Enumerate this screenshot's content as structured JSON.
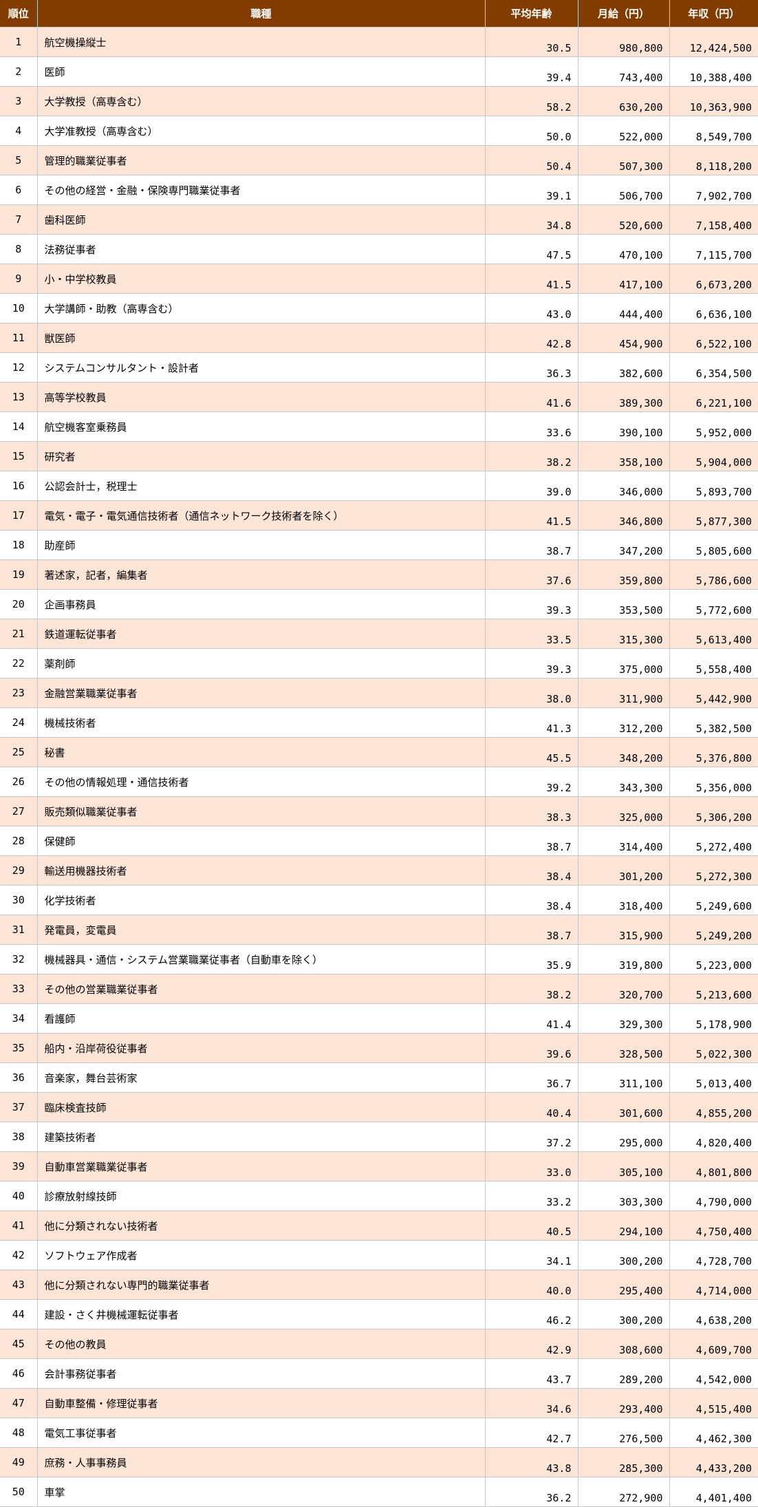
{
  "colors": {
    "header_bg": "#833C00",
    "header_text": "#FFFFFF",
    "stripe_bg": "#FCE4D6",
    "row_bg": "#FFFFFF",
    "grid": "#C8C8C8",
    "text": "#000000"
  },
  "chart_data": {
    "type": "table",
    "columns": [
      "順位",
      "職種",
      "平均年齢",
      "月給（円）",
      "年収（円）"
    ],
    "rows": [
      [
        "1",
        "航空機操縦士",
        "30.5",
        "980,800",
        "12,424,500"
      ],
      [
        "2",
        "医師",
        "39.4",
        "743,400",
        "10,388,400"
      ],
      [
        "3",
        "大学教授（高専含む）",
        "58.2",
        "630,200",
        "10,363,900"
      ],
      [
        "4",
        "大学准教授（高専含む）",
        "50.0",
        "522,000",
        "8,549,700"
      ],
      [
        "5",
        "管理的職業従事者",
        "50.4",
        "507,300",
        "8,118,200"
      ],
      [
        "6",
        "その他の経営・金融・保険専門職業従事者",
        "39.1",
        "506,700",
        "7,902,700"
      ],
      [
        "7",
        "歯科医師",
        "34.8",
        "520,600",
        "7,158,400"
      ],
      [
        "8",
        "法務従事者",
        "47.5",
        "470,100",
        "7,115,700"
      ],
      [
        "9",
        "小・中学校教員",
        "41.5",
        "417,100",
        "6,673,200"
      ],
      [
        "10",
        "大学講師・助教（高専含む）",
        "43.0",
        "444,400",
        "6,636,100"
      ],
      [
        "11",
        "獣医師",
        "42.8",
        "454,900",
        "6,522,100"
      ],
      [
        "12",
        "システムコンサルタント・設計者",
        "36.3",
        "382,600",
        "6,354,500"
      ],
      [
        "13",
        "高等学校教員",
        "41.6",
        "389,300",
        "6,221,100"
      ],
      [
        "14",
        "航空機客室乗務員",
        "33.6",
        "390,100",
        "5,952,000"
      ],
      [
        "15",
        "研究者",
        "38.2",
        "358,100",
        "5,904,000"
      ],
      [
        "16",
        "公認会計士，税理士",
        "39.0",
        "346,000",
        "5,893,700"
      ],
      [
        "17",
        "電気・電子・電気通信技術者（通信ネットワーク技術者を除く）",
        "41.5",
        "346,800",
        "5,877,300"
      ],
      [
        "18",
        "助産師",
        "38.7",
        "347,200",
        "5,805,600"
      ],
      [
        "19",
        "著述家，記者，編集者",
        "37.6",
        "359,800",
        "5,786,600"
      ],
      [
        "20",
        "企画事務員",
        "39.3",
        "353,500",
        "5,772,600"
      ],
      [
        "21",
        "鉄道運転従事者",
        "33.5",
        "315,300",
        "5,613,400"
      ],
      [
        "22",
        "薬剤師",
        "39.3",
        "375,000",
        "5,558,400"
      ],
      [
        "23",
        "金融営業職業従事者",
        "38.0",
        "311,900",
        "5,442,900"
      ],
      [
        "24",
        "機械技術者",
        "41.3",
        "312,200",
        "5,382,500"
      ],
      [
        "25",
        "秘書",
        "45.5",
        "348,200",
        "5,376,800"
      ],
      [
        "26",
        "その他の情報処理・通信技術者",
        "39.2",
        "343,300",
        "5,356,000"
      ],
      [
        "27",
        "販売類似職業従事者",
        "38.3",
        "325,000",
        "5,306,200"
      ],
      [
        "28",
        "保健師",
        "38.7",
        "314,400",
        "5,272,400"
      ],
      [
        "29",
        "輸送用機器技術者",
        "38.4",
        "301,200",
        "5,272,300"
      ],
      [
        "30",
        "化学技術者",
        "38.4",
        "318,400",
        "5,249,600"
      ],
      [
        "31",
        "発電員，変電員",
        "38.7",
        "315,900",
        "5,249,200"
      ],
      [
        "32",
        "機械器具・通信・システム営業職業従事者（自動車を除く）",
        "35.9",
        "319,800",
        "5,223,000"
      ],
      [
        "33",
        "その他の営業職業従事者",
        "38.2",
        "320,700",
        "5,213,600"
      ],
      [
        "34",
        "看護師",
        "41.4",
        "329,300",
        "5,178,900"
      ],
      [
        "35",
        "船内・沿岸荷役従事者",
        "39.6",
        "328,500",
        "5,022,300"
      ],
      [
        "36",
        "音楽家，舞台芸術家",
        "36.7",
        "311,100",
        "5,013,400"
      ],
      [
        "37",
        "臨床検査技師",
        "40.4",
        "301,600",
        "4,855,200"
      ],
      [
        "38",
        "建築技術者",
        "37.2",
        "295,000",
        "4,820,400"
      ],
      [
        "39",
        "自動車営業職業従事者",
        "33.0",
        "305,100",
        "4,801,800"
      ],
      [
        "40",
        "診療放射線技師",
        "33.2",
        "303,300",
        "4,790,000"
      ],
      [
        "41",
        "他に分類されない技術者",
        "40.5",
        "294,100",
        "4,750,400"
      ],
      [
        "42",
        "ソフトウェア作成者",
        "34.1",
        "300,200",
        "4,728,700"
      ],
      [
        "43",
        "他に分類されない専門的職業従事者",
        "40.0",
        "295,400",
        "4,714,000"
      ],
      [
        "44",
        "建設・さく井機械運転従事者",
        "46.2",
        "300,200",
        "4,638,200"
      ],
      [
        "45",
        "その他の教員",
        "42.9",
        "308,600",
        "4,609,700"
      ],
      [
        "46",
        "会計事務従事者",
        "43.7",
        "289,200",
        "4,542,000"
      ],
      [
        "47",
        "自動車整備・修理従事者",
        "34.6",
        "293,400",
        "4,515,400"
      ],
      [
        "48",
        "電気工事従事者",
        "42.7",
        "276,500",
        "4,462,300"
      ],
      [
        "49",
        "庶務・人事事務員",
        "43.8",
        "285,300",
        "4,433,200"
      ],
      [
        "50",
        "車掌",
        "36.2",
        "272,900",
        "4,401,400"
      ]
    ]
  }
}
